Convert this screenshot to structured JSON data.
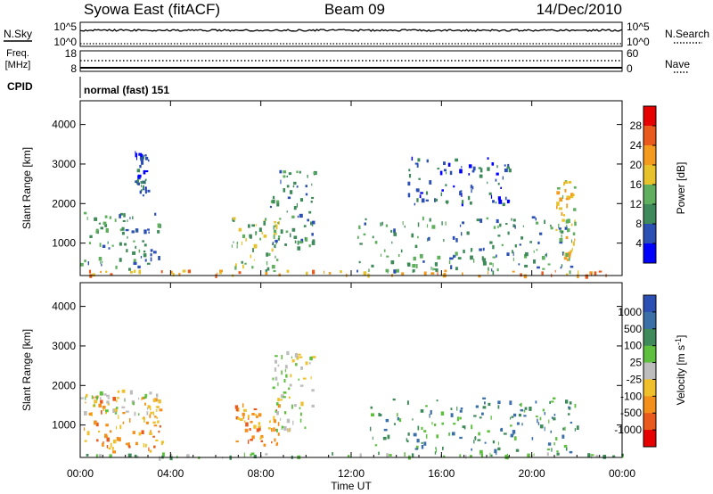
{
  "header": {
    "station": "Syowa East (fitACF)",
    "beam": "Beam 09",
    "date": "14/Dec/2010"
  },
  "top_panels": {
    "nsky_label": "N.Sky",
    "nsky_ticks": [
      "10^5",
      "10^0"
    ],
    "nsearch_label": "N.Search",
    "nsearch_ticks": [
      "10^5",
      "10^0"
    ],
    "freq_label_1": "Freq.",
    "freq_label_2": "[MHz]",
    "freq_ticks": [
      "18",
      "8"
    ],
    "nave_label": "Nave",
    "nave_ticks": [
      "60",
      "0"
    ],
    "cpid_label": "CPID",
    "cpid_text": "normal (fast) 151"
  },
  "chart_data": [
    {
      "type": "heatmap",
      "name": "power",
      "ylabel": "Slant Range [km]",
      "yticks": [
        "1000",
        "2000",
        "3000",
        "4000"
      ],
      "ylim": [
        180,
        4600
      ],
      "xlim": [
        0,
        24
      ],
      "colorbar_label": "Power [dB]",
      "colorbar_ticks": [
        "4",
        "8",
        "12",
        "16",
        "20",
        "24",
        "28"
      ],
      "colors": [
        "#0000ff",
        "#2b4fb3",
        "#3f8a5a",
        "#5faf5f",
        "#e8c22b",
        "#f39a1f",
        "#ea5a1c",
        "#e60000"
      ],
      "regions": [
        {
          "t0": 0.0,
          "t1": 3.5,
          "r0": 350,
          "r1": 1800,
          "lvl": 2
        },
        {
          "t0": 2.4,
          "t1": 3.0,
          "r0": 2200,
          "r1": 3400,
          "lvl": 1
        },
        {
          "t0": 6.7,
          "t1": 8.8,
          "r0": 300,
          "r1": 1700,
          "lvl": 3
        },
        {
          "t0": 8.4,
          "t1": 10.4,
          "r0": 900,
          "r1": 2900,
          "lvl": 2
        },
        {
          "t0": 12.2,
          "t1": 21.8,
          "r0": 300,
          "r1": 1700,
          "lvl": 2
        },
        {
          "t0": 14.5,
          "t1": 19.0,
          "r0": 2000,
          "r1": 3200,
          "lvl": 1
        },
        {
          "t0": 21.0,
          "t1": 21.9,
          "r0": 600,
          "r1": 2600,
          "lvl": 4
        },
        {
          "t0": 0.0,
          "t1": 24.0,
          "r0": 200,
          "r1": 330,
          "lvl": 5
        }
      ]
    },
    {
      "type": "heatmap",
      "name": "velocity",
      "ylabel": "Slant Range [km]",
      "yticks": [
        "1000",
        "2000",
        "3000",
        "4000"
      ],
      "ylim": [
        180,
        4600
      ],
      "xlim": [
        0,
        24
      ],
      "xticks": [
        "00:00",
        "04:00",
        "08:00",
        "12:00",
        "16:00",
        "20:00",
        "00:00"
      ],
      "xlabel": "Time UT",
      "colorbar_label": "Velocity [m s^-1]",
      "colorbar_ticks": [
        "1000",
        "500",
        "100",
        "25",
        "-25",
        "-100",
        "-500",
        "-1000"
      ],
      "colors": [
        "#2b4fb3",
        "#3a6fa8",
        "#3f8a5a",
        "#5fbf3f",
        "#bdbdbd",
        "#f0c02a",
        "#f3901c",
        "#ea5a1c",
        "#e60000"
      ],
      "regions": [
        {
          "t0": 0.0,
          "t1": 3.6,
          "r0": 300,
          "r1": 1800,
          "lvl": 6
        },
        {
          "t0": 0.0,
          "t1": 3.5,
          "r0": 1300,
          "r1": 1900,
          "lvl": 4
        },
        {
          "t0": 6.8,
          "t1": 8.8,
          "r0": 500,
          "r1": 1600,
          "lvl": 6
        },
        {
          "t0": 8.5,
          "t1": 10.3,
          "r0": 900,
          "r1": 2900,
          "lvl": 4
        },
        {
          "t0": 12.8,
          "t1": 22.0,
          "r0": 300,
          "r1": 1700,
          "lvl": 2
        },
        {
          "t0": 0.0,
          "t1": 24.0,
          "r0": 200,
          "r1": 320,
          "lvl": 3
        }
      ]
    }
  ]
}
